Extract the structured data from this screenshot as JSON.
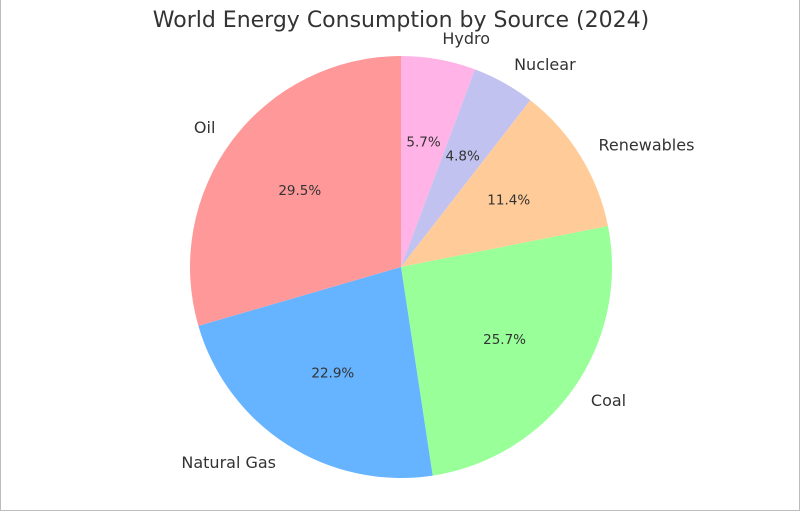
{
  "chart_data": {
    "type": "pie",
    "title": "World Energy Consumption by Source (2024)",
    "start_angle_deg": 90,
    "direction": "clockwise",
    "slices": [
      {
        "label": "Hydro",
        "value": 5.7,
        "pct_label": "5.7%",
        "color": "#ffb3e6"
      },
      {
        "label": "Nuclear",
        "value": 4.8,
        "pct_label": "4.8%",
        "color": "#c2c2f0"
      },
      {
        "label": "Renewables",
        "value": 11.4,
        "pct_label": "11.4%",
        "color": "#ffcc99"
      },
      {
        "label": "Coal",
        "value": 25.7,
        "pct_label": "25.7%",
        "color": "#99ff99"
      },
      {
        "label": "Natural Gas",
        "value": 22.9,
        "pct_label": "22.9%",
        "color": "#66b3ff"
      },
      {
        "label": "Oil",
        "value": 29.5,
        "pct_label": "29.5%",
        "color": "#ff9999"
      }
    ]
  }
}
